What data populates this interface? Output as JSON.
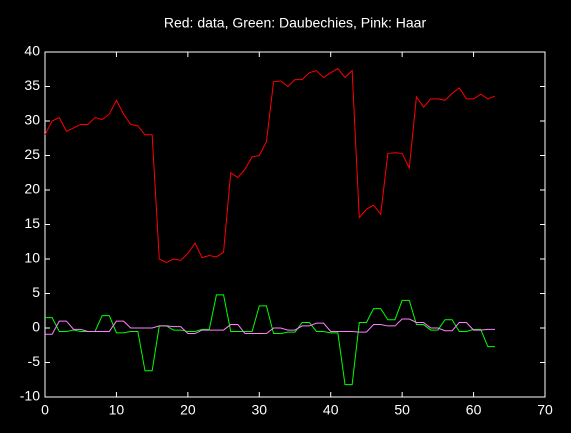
{
  "chart_data": {
    "type": "line",
    "title": "Red: data, Green: Daubechies, Pink: Haar",
    "x": [
      0,
      1,
      2,
      3,
      4,
      5,
      6,
      7,
      8,
      9,
      10,
      11,
      12,
      13,
      14,
      15,
      16,
      17,
      18,
      19,
      20,
      21,
      22,
      23,
      24,
      25,
      26,
      27,
      28,
      29,
      30,
      31,
      32,
      33,
      34,
      35,
      36,
      37,
      38,
      39,
      40,
      41,
      42,
      43,
      44,
      45,
      46,
      47,
      48,
      49,
      50,
      51,
      52,
      53,
      54,
      55,
      56,
      57,
      58,
      59,
      60,
      61,
      62,
      63
    ],
    "series": [
      {
        "color": "#ff0000",
        "values": [
          28,
          30,
          30.5,
          28.5,
          29,
          29.5,
          29.5,
          30.5,
          30.2,
          31,
          33,
          31,
          29.5,
          29.3,
          28,
          28,
          10,
          9.5,
          10,
          9.8,
          10.8,
          12.3,
          10.2,
          10.5,
          10.3,
          11,
          22.5,
          21.8,
          23,
          24.8,
          25,
          27,
          35.7,
          35.8,
          35,
          36,
          36,
          37,
          37.3,
          36.3,
          37,
          37.6,
          36.3,
          37.3,
          16,
          17.2,
          17.8,
          16.5,
          25.3,
          25.4,
          25.3,
          23.2,
          33.5,
          32,
          33.2,
          33.2,
          33,
          34,
          34.8,
          33.2,
          33.2,
          33.9,
          33.2,
          33.6
        ]
      },
      {
        "color": "#00ff00",
        "values": [
          1.5,
          1.5,
          -0.5,
          -0.5,
          -0.3,
          -0.5,
          -0.5,
          -0.5,
          1.8,
          1.8,
          -0.7,
          -0.7,
          -0.5,
          -0.5,
          -6.2,
          -6.2,
          0.3,
          0.3,
          -0.3,
          -0.3,
          -0.5,
          -0.5,
          -0.2,
          -0.2,
          4.8,
          4.8,
          -0.5,
          -0.5,
          -0.5,
          -0.5,
          3.2,
          3.2,
          -0.8,
          -0.8,
          -0.6,
          -0.6,
          0.8,
          0.8,
          -0.5,
          -0.5,
          -0.7,
          -0.7,
          -8.2,
          -8.2,
          0.8,
          0.8,
          2.8,
          2.8,
          1.2,
          1.2,
          4,
          4,
          0.5,
          0.5,
          -0.3,
          -0.3,
          1.2,
          1.2,
          -0.5,
          -0.5,
          -0.2,
          -0.2,
          -2.7,
          -2.7
        ]
      },
      {
        "color": "#ff80ff",
        "values": [
          -0.9,
          -0.9,
          1,
          1,
          -0.2,
          -0.2,
          -0.5,
          -0.5,
          -0.5,
          -0.5,
          1,
          1,
          0,
          0,
          0,
          0,
          0.3,
          0.3,
          0.2,
          0.2,
          -0.8,
          -0.8,
          -0.3,
          -0.3,
          -0.3,
          -0.3,
          0.5,
          0.5,
          -0.8,
          -0.8,
          -0.8,
          -0.8,
          0,
          0,
          -0.3,
          -0.3,
          0.3,
          0.3,
          0.7,
          0.7,
          -0.5,
          -0.5,
          -0.5,
          -0.5,
          -0.6,
          -0.6,
          0.5,
          0.5,
          0.3,
          0.3,
          1.3,
          1.3,
          0.8,
          0.8,
          0,
          0,
          -0.4,
          -0.4,
          0.8,
          0.8,
          -0.3,
          -0.3,
          -0.2,
          -0.2
        ]
      }
    ],
    "xlim": [
      0,
      70
    ],
    "xticks": [
      0,
      10,
      20,
      30,
      40,
      50,
      60,
      70
    ],
    "ylim": [
      -10,
      40
    ],
    "yticks": [
      -10,
      -5,
      0,
      5,
      10,
      15,
      20,
      25,
      30,
      35,
      40
    ],
    "background": "#000000",
    "axis_color": "#ffffff"
  }
}
